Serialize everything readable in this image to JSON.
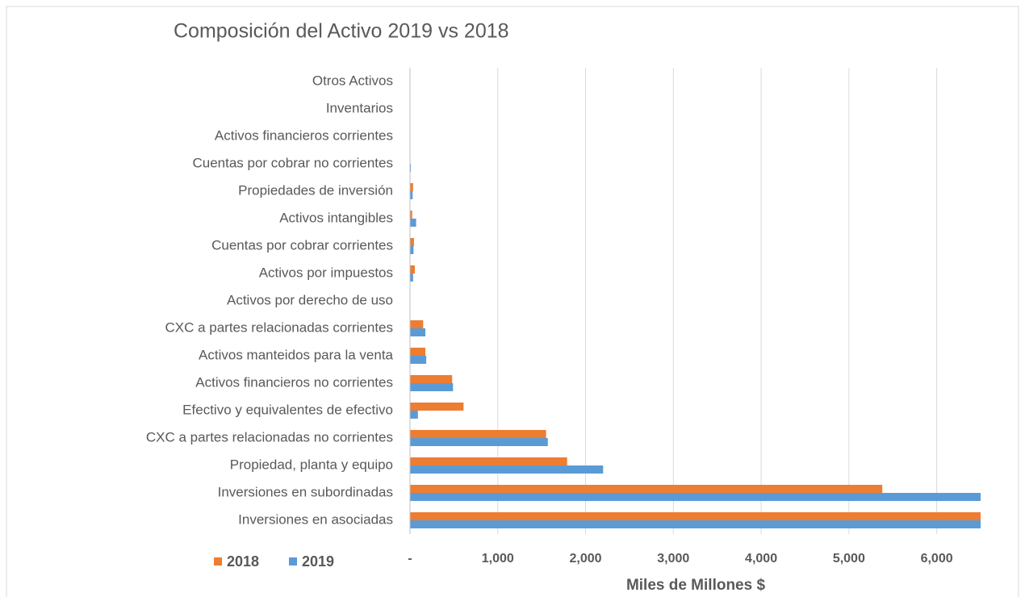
{
  "chart_data": {
    "type": "bar",
    "orientation": "horizontal",
    "title": "Composición del Activo 2019 vs 2018",
    "x_label": "Miles de Millones $",
    "categories": [
      "Otros Activos",
      "Inventarios",
      "Activos financieros corrientes",
      "Cuentas por cobrar no corrientes",
      "Propiedades de inversión",
      "Activos intangibles",
      "Cuentas por cobrar corrientes",
      "Activos por impuestos",
      "Activos por derecho de uso",
      "CXC a partes relacionadas corrientes",
      "Activos manteidos para la venta",
      "Activos financieros no corrientes",
      "Efectivo y equivalentes de efectivo",
      "CXC a partes relacionadas no corrientes",
      "Propiedad, planta y equipo",
      "Inversiones en subordinadas",
      "Inversiones en asociadas"
    ],
    "series": [
      {
        "name": "2018",
        "color": "#ed7d31",
        "values": [
          0,
          0,
          0,
          0,
          35,
          25,
          45,
          55,
          0,
          150,
          175,
          480,
          610,
          1550,
          1790,
          5380,
          6500
        ]
      },
      {
        "name": "2019",
        "color": "#5b9bd5",
        "values": [
          0,
          0,
          0,
          10,
          30,
          70,
          40,
          35,
          0,
          175,
          185,
          490,
          90,
          1570,
          2200,
          6500,
          6500
        ]
      }
    ],
    "xlim": [
      0,
      6500
    ],
    "xticks": [
      {
        "value": 0,
        "label": "-"
      },
      {
        "value": 1000,
        "label": "1,000"
      },
      {
        "value": 2000,
        "label": "2,000"
      },
      {
        "value": 3000,
        "label": "3,000"
      },
      {
        "value": 4000,
        "label": "4,000"
      },
      {
        "value": 5000,
        "label": "5,000"
      },
      {
        "value": 6000,
        "label": "6,000"
      }
    ],
    "grid": true,
    "legend": "bottom-left"
  }
}
